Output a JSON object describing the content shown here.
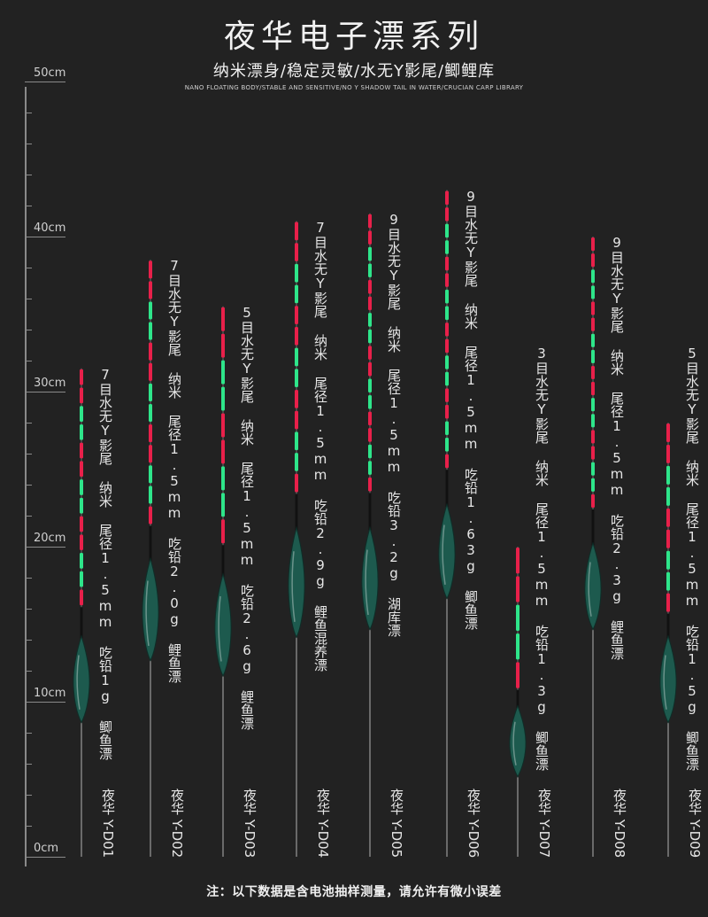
{
  "header": {
    "title": "夜华电子漂系列",
    "subtitle": "纳米漂身/稳定灵敏/水无Y影尾/鲫鲤库",
    "subtitle_en": "NANO FLOATING BODY/STABLE AND SENSITIVE/NO Y SHADOW TAIL IN WATER/CRUCIAN CARP LIBRARY"
  },
  "ruler": {
    "unit_labels": [
      "50cm",
      "40cm",
      "30cm",
      "20cm",
      "10cm",
      "0cm"
    ]
  },
  "colors": {
    "background": "#222222",
    "tail_red": "#e8204a",
    "tail_green": "#2ee58a",
    "body": "#1d5a4e"
  },
  "floats": [
    {
      "model": "夜华 Y-D01",
      "spec": "7目水无Y影尾 纳米 尾径1.5mm 吃铅1g 鲫鱼漂",
      "tail_segments": 7,
      "tip_cm": 31.5,
      "body_top_cm": 14.0,
      "body_bottom_cm": 9.0,
      "bottom_cm": 0
    },
    {
      "model": "夜华 Y-D02",
      "spec": "7目水无Y影尾 纳米 尾径1.5mm 吃铅2.0g 鲤鱼漂",
      "tail_segments": 7,
      "tip_cm": 38.5,
      "body_top_cm": 19.0,
      "body_bottom_cm": 13.0,
      "bottom_cm": 0
    },
    {
      "model": "夜华 Y-D03",
      "spec": "5目水无Y影尾 纳米 尾径1.5mm 吃铅2.6g 鲤鱼漂",
      "tail_segments": 5,
      "tip_cm": 35.5,
      "body_top_cm": 18.0,
      "body_bottom_cm": 12.0,
      "bottom_cm": 0
    },
    {
      "model": "夜华 Y-D04",
      "spec": "7目水无Y影尾 纳米 尾径1.5mm 吃铅2.9g 鲤鱼混养漂",
      "tail_segments": 7,
      "tip_cm": 41.0,
      "body_top_cm": 21.0,
      "body_bottom_cm": 14.5,
      "bottom_cm": 0
    },
    {
      "model": "夜华 Y-D05",
      "spec": "9目水无Y影尾 纳米 尾径1.5mm 吃铅3.2g 湖库漂",
      "tail_segments": 9,
      "tip_cm": 41.5,
      "body_top_cm": 21.0,
      "body_bottom_cm": 15.0,
      "bottom_cm": 0
    },
    {
      "model": "夜华 Y-D06",
      "spec": "9目水无Y影尾 纳米 尾径1.5mm 吃铅1.63g 鲫鱼漂",
      "tail_segments": 9,
      "tip_cm": 43.0,
      "body_top_cm": 22.5,
      "body_bottom_cm": 17.0,
      "bottom_cm": 0
    },
    {
      "model": "夜华 Y-D07",
      "spec": "3目水无Y影尾 纳米 尾径1.5mm 吃铅1.3g 鲫鱼漂",
      "tail_segments": 3,
      "tip_cm": 20.0,
      "body_top_cm": 9.5,
      "body_bottom_cm": 5.5,
      "bottom_cm": 0
    },
    {
      "model": "夜华 Y-D08",
      "spec": "9目水无Y影尾 纳米 尾径1.5mm 吃铅2.3g 鲤鱼漂",
      "tail_segments": 9,
      "tip_cm": 40.0,
      "body_top_cm": 20.0,
      "body_bottom_cm": 15.0,
      "bottom_cm": 0
    },
    {
      "model": "夜华 Y-D09",
      "spec": "5目水无Y影尾 纳米 尾径1.5mm 吃铅1.5g 鲫鱼漂",
      "tail_segments": 5,
      "tip_cm": 28.0,
      "body_top_cm": 14.0,
      "body_bottom_cm": 9.0,
      "bottom_cm": 0
    }
  ],
  "footnote": "注：以下数据是含电池抽样测量，请允许有微小误差"
}
